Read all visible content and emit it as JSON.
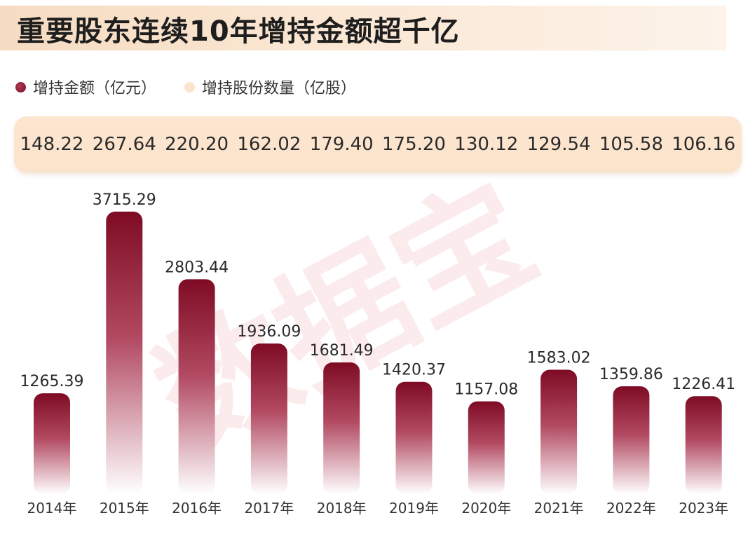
{
  "title": "重要股东连续10年增持金额超千亿",
  "legend": {
    "amount_label": "增持金额（亿元）",
    "shares_label": "增持股份数量（亿股）"
  },
  "watermark": "数据宝",
  "colors": {
    "bar_top": "#7e0b24",
    "bar_bottom": "#ffffff",
    "shares_band": "#fce6d0"
  },
  "chart_data": {
    "type": "bar",
    "categories": [
      "2014年",
      "2015年",
      "2016年",
      "2017年",
      "2018年",
      "2019年",
      "2020年",
      "2021年",
      "2022年",
      "2023年"
    ],
    "series": [
      {
        "name": "增持金额（亿元）",
        "values": [
          1265.39,
          3715.29,
          2803.44,
          1936.09,
          1681.49,
          1420.37,
          1157.08,
          1583.02,
          1359.86,
          1226.41
        ],
        "labels": [
          "1265.39",
          "3715.29",
          "2803.44",
          "1936.09",
          "1681.49",
          "1420.37",
          "1157.08",
          "1583.02",
          "1359.86",
          "1226.41"
        ]
      },
      {
        "name": "增持股份数量（亿股）",
        "values": [
          148.22,
          267.64,
          220.2,
          162.02,
          179.4,
          175.2,
          130.12,
          129.54,
          105.58,
          106.16
        ],
        "labels": [
          "148.22",
          "267.64",
          "220.20",
          "162.02",
          "179.40",
          "175.20",
          "130.12",
          "129.54",
          "105.58",
          "106.16"
        ]
      }
    ],
    "title": "重要股东连续10年增持金额超千亿",
    "xlabel": "",
    "ylabel": "",
    "grid": false,
    "legend_position": "top-left"
  }
}
